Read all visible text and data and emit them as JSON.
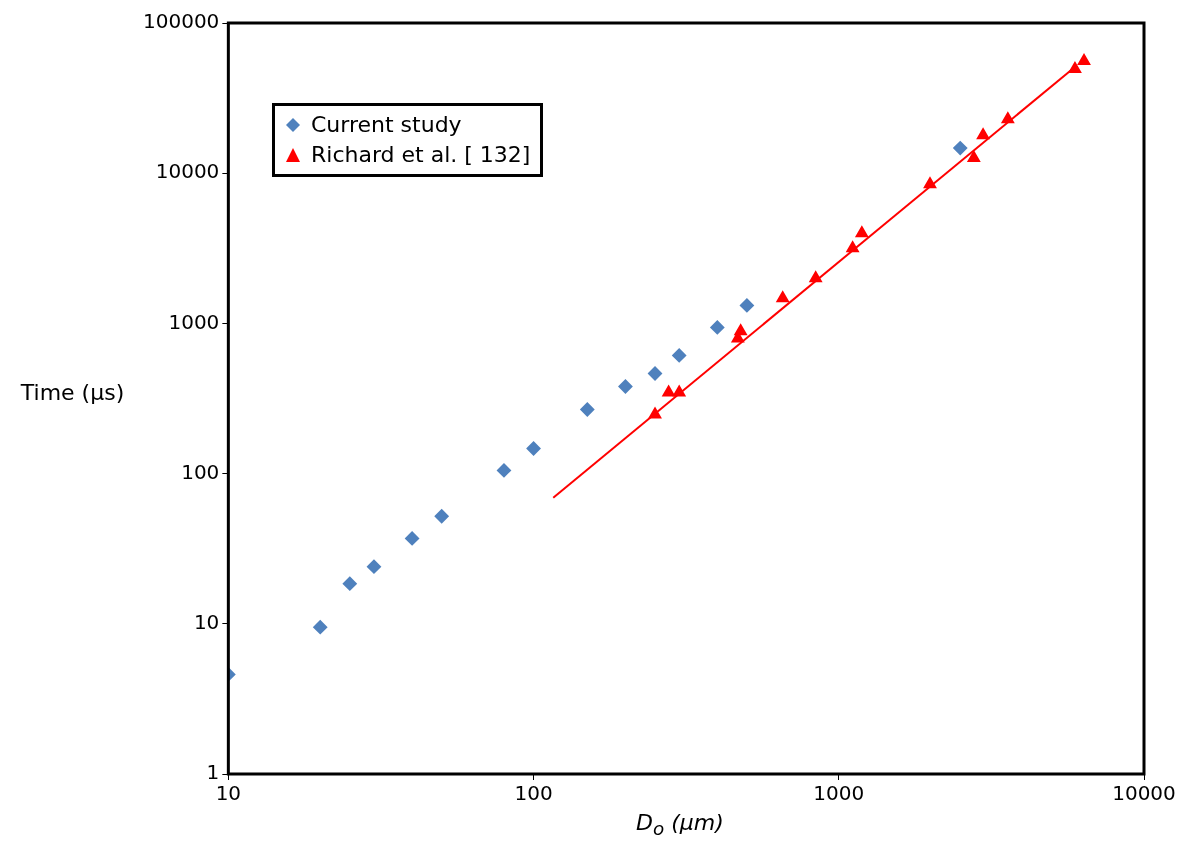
{
  "chart_data": {
    "type": "scatter",
    "xlabel": "D$_{o}$ (µm)",
    "ylabel": "Time (µs)",
    "log": "xy",
    "xlim": [
      10,
      10000
    ],
    "xticks": [
      10,
      100,
      1000,
      10000
    ],
    "ylim": [
      1,
      100000
    ],
    "yticks": [
      1,
      10,
      100,
      1000,
      10000,
      100000
    ],
    "grid": false,
    "legend": "top left",
    "series": [
      {
        "name": "Current study",
        "marker": "diamond",
        "color": "#4f81bd",
        "x": [
          10,
          20,
          25,
          30,
          40,
          50,
          80,
          100,
          150,
          200,
          250,
          300,
          400,
          500,
          2500
        ],
        "values": [
          4.6,
          9.5,
          18.5,
          24,
          37,
          52,
          105,
          147,
          267,
          380,
          464,
          612,
          940,
          1318,
          14700
        ]
      },
      {
        "name": "Richard et al. [ 132]",
        "marker": "triangle",
        "color": "#ff0000",
        "x": [
          250,
          277,
          300,
          467,
          477,
          655,
          840,
          1110,
          1190,
          1990,
          2770,
          2970,
          3580,
          5940,
          6360
        ],
        "values": [
          247,
          347,
          347,
          794,
          885,
          1470,
          2000,
          3160,
          3980,
          8450,
          12600,
          17900,
          22900,
          49400,
          55800
        ]
      },
      {
        "type": "line",
        "marker": "none",
        "color": "#ff0000",
        "x": [
          116,
          5980
        ],
        "values": [
          69,
          51600
        ]
      }
    ]
  }
}
